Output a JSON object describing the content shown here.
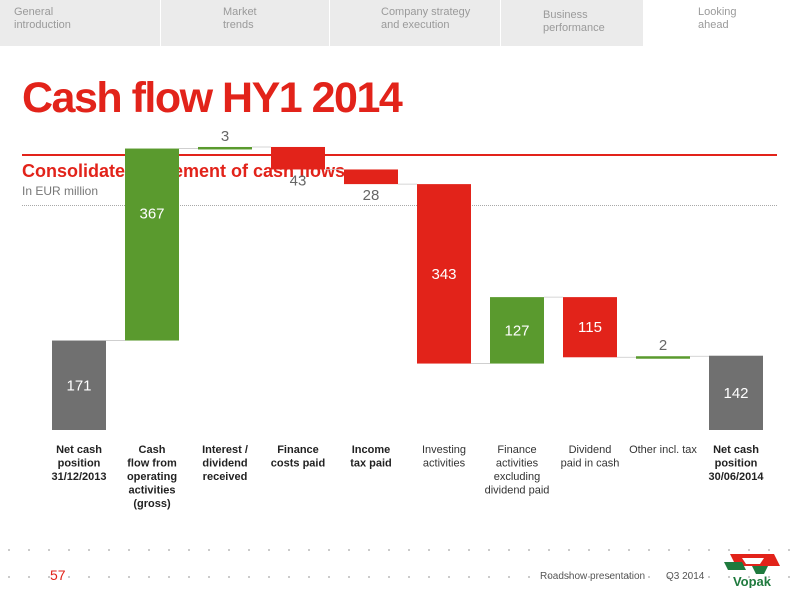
{
  "nav": {
    "tabs": [
      {
        "label": "General\nintroduction",
        "active": false
      },
      {
        "label": "Market\ntrends",
        "active": false
      },
      {
        "label": "Company strategy\nand execution",
        "active": false
      },
      {
        "label": "Business\nperformance",
        "active": false
      },
      {
        "label": "Looking\nahead",
        "active": true
      }
    ]
  },
  "title": "Cash flow HY1 2014",
  "subtitle": "Consolidated statement of cash flows",
  "unit_label": "In EUR million",
  "colors": {
    "brand_red": "#e2231a",
    "increase": "#5a9a2e",
    "decrease": "#e2231a",
    "total": "#707070",
    "nav_bg": "#ebebeb"
  },
  "chart_data": {
    "type": "waterfall",
    "categories": [
      "Net cash position 31/12/2013",
      "Cash flow from operating activities (gross)",
      "Interest / dividend received",
      "Finance costs paid",
      "Income tax paid",
      "Investing activities",
      "Finance activities excluding dividend paid",
      "Dividend paid in cash",
      "Other incl. tax",
      "Net cash position 30/06/2014"
    ],
    "category_label_lines": [
      [
        "Net cash",
        "position",
        "31/12/2013"
      ],
      [
        "Cash",
        "flow from",
        "operating",
        "activities",
        "(gross)"
      ],
      [
        "Interest /",
        "dividend",
        "received"
      ],
      [
        "Finance",
        "costs paid"
      ],
      [
        "Income",
        "tax paid"
      ],
      [
        "Investing",
        "activities"
      ],
      [
        "Finance",
        "activities",
        "excluding",
        "dividend paid"
      ],
      [
        "Dividend",
        "paid in cash"
      ],
      [
        "Other incl. tax"
      ],
      [
        "Net cash",
        "position",
        "30/06/2014"
      ]
    ],
    "category_bold": [
      true,
      true,
      true,
      true,
      true,
      false,
      false,
      false,
      false,
      true
    ],
    "kinds": [
      "total",
      "increase",
      "increase",
      "decrease",
      "decrease",
      "decrease",
      "increase",
      "decrease",
      "increase",
      "total"
    ],
    "values": [
      171,
      367,
      3,
      43,
      28,
      343,
      127,
      115,
      2,
      142
    ],
    "data_labels": [
      "171",
      "367",
      "3",
      "43",
      "28",
      "343",
      "127",
      "115",
      "2",
      "142"
    ],
    "label_position": [
      "inside",
      "inside",
      "above",
      "below",
      "below",
      "inside",
      "inside",
      "inside",
      "above",
      "inside"
    ],
    "grid": false
  },
  "footer": {
    "page_number": "57",
    "presentation": "Roadshow presentation",
    "period": "Q3 2014",
    "logo_text": "Vopak"
  }
}
